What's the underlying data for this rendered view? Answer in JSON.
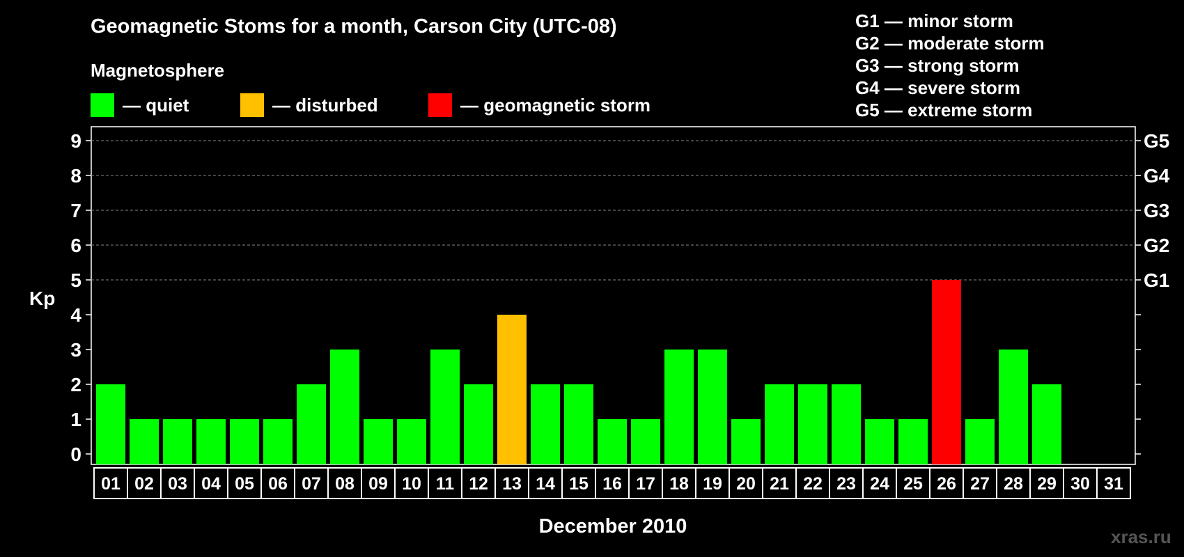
{
  "chart_data": {
    "type": "bar",
    "title": "Geomagnetic Stoms for a month, Carson City (UTC-08)",
    "subtitle": "Magnetosphere",
    "xlabel": "December 2010",
    "ylabel": "Kp",
    "ylim": [
      0,
      9
    ],
    "yticks": [
      "0",
      "1",
      "2",
      "3",
      "4",
      "5",
      "6",
      "7",
      "8",
      "9"
    ],
    "right_axis_labels": [
      {
        "kp": 5,
        "label": "G1"
      },
      {
        "kp": 6,
        "label": "G2"
      },
      {
        "kp": 7,
        "label": "G3"
      },
      {
        "kp": 8,
        "label": "G4"
      },
      {
        "kp": 9,
        "label": "G5"
      }
    ],
    "grid": "dashed at Kp 5-9",
    "categories": [
      "01",
      "02",
      "03",
      "04",
      "05",
      "06",
      "07",
      "08",
      "09",
      "10",
      "11",
      "12",
      "13",
      "14",
      "15",
      "16",
      "17",
      "18",
      "19",
      "20",
      "21",
      "22",
      "23",
      "24",
      "25",
      "26",
      "27",
      "28",
      "29",
      "30",
      "31"
    ],
    "values": [
      2,
      1,
      1,
      1,
      1,
      1,
      2,
      3,
      1,
      1,
      3,
      2,
      4,
      2,
      2,
      1,
      1,
      3,
      3,
      1,
      2,
      2,
      2,
      1,
      1,
      5,
      1,
      3,
      2,
      null,
      null
    ],
    "status": [
      "quiet",
      "quiet",
      "quiet",
      "quiet",
      "quiet",
      "quiet",
      "quiet",
      "quiet",
      "quiet",
      "quiet",
      "quiet",
      "quiet",
      "disturbed",
      "quiet",
      "quiet",
      "quiet",
      "quiet",
      "quiet",
      "quiet",
      "quiet",
      "quiet",
      "quiet",
      "quiet",
      "quiet",
      "quiet",
      "storm",
      "quiet",
      "quiet",
      "quiet",
      null,
      null
    ],
    "colors": {
      "quiet": "#00ff00",
      "disturbed": "#ffc000",
      "storm": "#ff0000"
    },
    "legend": [
      {
        "key": "quiet",
        "label": "— quiet"
      },
      {
        "key": "disturbed",
        "label": "— disturbed"
      },
      {
        "key": "storm",
        "label": "— geomagnetic storm"
      }
    ],
    "g_scale": [
      "G1 — minor storm",
      "G2 — moderate storm",
      "G3 — strong storm",
      "G4 — severe storm",
      "G5 — extreme storm"
    ]
  },
  "watermark": "xras.ru"
}
